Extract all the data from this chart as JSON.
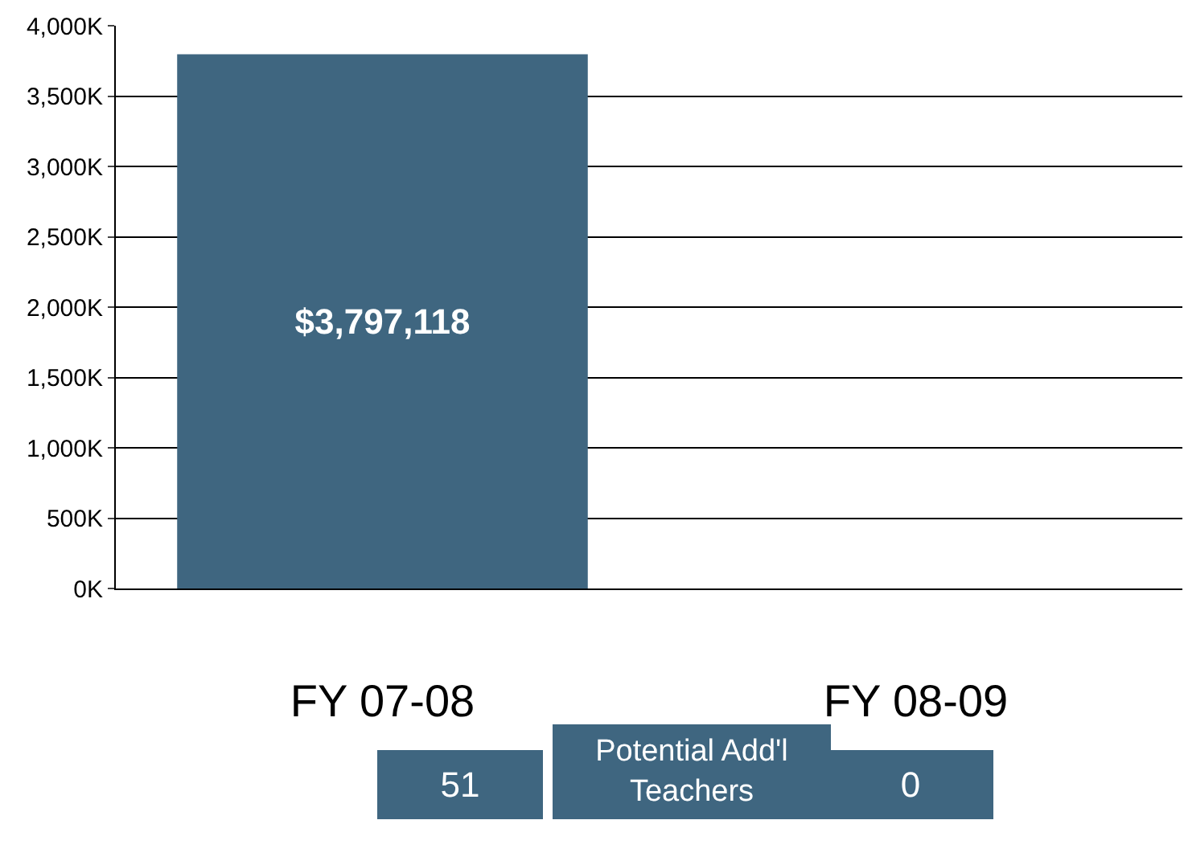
{
  "chart_data": {
    "type": "bar",
    "categories": [
      "FY 07-08",
      "FY 08-09"
    ],
    "values": [
      3797118,
      0
    ],
    "color": "#3f6680",
    "value_labels": [
      "$3,797,118",
      null
    ],
    "ylim": [
      0,
      4000000
    ],
    "yticks": [
      {
        "value": 0,
        "label": "0K"
      },
      {
        "value": 500000,
        "label": "500K"
      },
      {
        "value": 1000000,
        "label": "1,000K"
      },
      {
        "value": 1500000,
        "label": "1,500K"
      },
      {
        "value": 2000000,
        "label": "2,000K"
      },
      {
        "value": 2500000,
        "label": "2,500K"
      },
      {
        "value": 3000000,
        "label": "3,000K"
      },
      {
        "value": 3500000,
        "label": "3,500K"
      },
      {
        "value": 4000000,
        "label": "4,000K"
      }
    ],
    "grid": "y",
    "legend": false,
    "annotations": [
      "51",
      "Potential Add'l\nTeachers",
      "0"
    ]
  }
}
